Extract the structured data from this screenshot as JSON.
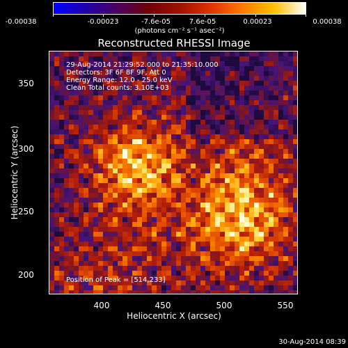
{
  "colorbar": {
    "tick_labels": [
      "-0.00038",
      "-0.00023",
      "-7.6e-05",
      "7.6e-05",
      "0.00023",
      "0.00038"
    ],
    "units": "(photons cm⁻² s⁻¹ asec⁻²)",
    "colors": [
      "#0000ff",
      "#1f00aa",
      "#4a0060",
      "#6f0008",
      "#a01000",
      "#e03200",
      "#ff7a00",
      "#ffc000",
      "#ffffff"
    ]
  },
  "title": "Reconstructed RHESSI Image",
  "info": {
    "line1": "29-Aug-2014 21:29:52.000 to 21:35:10.000",
    "line2": "Detectors: 3F 6F 8F 9F, Att 0",
    "line3": "Energy Range: 12.0 - 25.0 keV",
    "line4": "Clean     Total counts: 3.10E+03",
    "peak": "Position of Peak = [514,233]"
  },
  "axes": {
    "xlabel": "Heliocentric X (arcsec)",
    "ylabel": "Heliocentric Y (arcsec)",
    "xticks": [
      "400",
      "450",
      "500",
      "550"
    ],
    "yticks": [
      "350",
      "300",
      "250",
      "200"
    ],
    "xrange": [
      363,
      552
    ],
    "yrange": [
      185,
      380
    ]
  },
  "timestamp": "30-Aug-2014 08:39",
  "image_palette": {
    "background": "#3a0d6a",
    "mid": "#a21b0a",
    "bright": "#ffd23a"
  }
}
